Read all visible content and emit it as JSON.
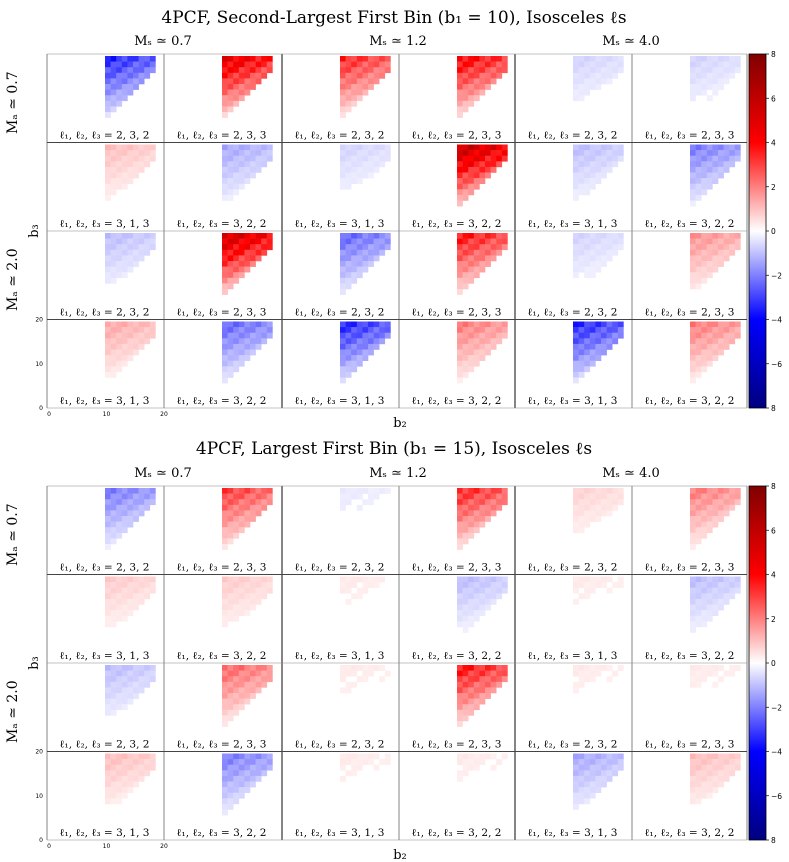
{
  "figures": [
    {
      "title": "4PCF, Second-Largest First Bin (b₁ = 10), Isosceles ℓs",
      "ms_labels": [
        "Mₛ ≃ 0.7",
        "Mₛ ≃ 1.2",
        "Mₛ ≃ 4.0"
      ],
      "ma_labels": [
        "Mₐ ≃ 0.7",
        "Mₐ ≃ 2.0"
      ],
      "ylabel": "b₃",
      "xlabel": "b₂",
      "x_ticks": [
        "0",
        "10",
        "20"
      ],
      "y_ticks": [
        "0",
        "10",
        "20"
      ],
      "colorbar_ticks": [
        "8",
        "6",
        "4",
        "2",
        "0",
        "−2",
        "−4",
        "−6",
        "8"
      ]
    },
    {
      "title": "4PCF, Largest First Bin (b₁ = 15), Isosceles ℓs",
      "ms_labels": [
        "Mₛ ≃ 0.7",
        "Mₛ ≃ 1.2",
        "Mₛ ≃ 4.0"
      ],
      "ma_labels": [
        "Mₐ ≃ 0.7",
        "Mₐ ≃ 2.0"
      ],
      "ylabel": "b₃",
      "xlabel": "b₂",
      "x_ticks": [
        "0",
        "10",
        "20"
      ],
      "y_ticks": [
        "0",
        "10",
        "20"
      ],
      "colorbar_ticks": [
        "8",
        "6",
        "4",
        "2",
        "0",
        "−2",
        "−4",
        "−6",
        "8"
      ]
    }
  ],
  "panel_labels": [
    [
      "ℓ₁, ℓ₂, ℓ₃ = 2, 3, 2",
      "ℓ₁, ℓ₂, ℓ₃ = 2, 3, 3",
      "ℓ₁, ℓ₂, ℓ₃ = 2, 3, 2",
      "ℓ₁, ℓ₂, ℓ₃ = 2, 3, 3",
      "ℓ₁, ℓ₂, ℓ₃ = 2, 3, 2",
      "ℓ₁, ℓ₂, ℓ₃ = 2, 3, 3"
    ],
    [
      "ℓ₁, ℓ₂, ℓ₃ = 3, 1, 3",
      "ℓ₁, ℓ₂, ℓ₃ = 3, 2, 2",
      "ℓ₁, ℓ₂, ℓ₃ = 3, 1, 3",
      "ℓ₁, ℓ₂, ℓ₃ = 3, 2, 2",
      "ℓ₁, ℓ₂, ℓ₃ = 3, 1, 3",
      "ℓ₁, ℓ₂, ℓ₃ = 3, 2, 2"
    ],
    [
      "ℓ₁, ℓ₂, ℓ₃ = 2, 3, 2",
      "ℓ₁, ℓ₂, ℓ₃ = 2, 3, 3",
      "ℓ₁, ℓ₂, ℓ₃ = 2, 3, 2",
      "ℓ₁, ℓ₂, ℓ₃ = 2, 3, 3",
      "ℓ₁, ℓ₂, ℓ₃ = 2, 3, 2",
      "ℓ₁, ℓ₂, ℓ₃ = 2, 3, 3"
    ],
    [
      "ℓ₁, ℓ₂, ℓ₃ = 3, 1, 3",
      "ℓ₁, ℓ₂, ℓ₃ = 3, 2, 2",
      "ℓ₁, ℓ₂, ℓ₃ = 3, 1, 3",
      "ℓ₁, ℓ₂, ℓ₃ = 3, 2, 2",
      "ℓ₁, ℓ₂, ℓ₃ = 3, 1, 3",
      "ℓ₁, ℓ₂, ℓ₃ = 3, 2, 2"
    ]
  ],
  "chart_data": [
    {
      "type": "heatmap",
      "title": "4PCF, Second-Largest First Bin (b₁ = 10), Isosceles ℓs",
      "xlabel": "b₂",
      "ylabel": "b₃",
      "xlim": [
        0,
        20
      ],
      "ylim": [
        0,
        20
      ],
      "colorbar_range": [
        -8,
        8
      ],
      "colormap": "seismic",
      "panel_intensity": [
        [
          -0.5,
          0.7,
          0.5,
          0.6,
          -0.1,
          -0.1
        ],
        [
          0.15,
          -0.2,
          -0.1,
          0.85,
          -0.15,
          -0.3
        ],
        [
          -0.15,
          0.8,
          -0.35,
          0.55,
          -0.1,
          0.25
        ],
        [
          0.2,
          -0.35,
          -0.5,
          0.3,
          -0.5,
          0.3
        ]
      ]
    },
    {
      "type": "heatmap",
      "title": "4PCF, Largest First Bin (b₁ = 15), Isosceles ℓs",
      "xlabel": "b₂",
      "ylabel": "b₃",
      "xlim": [
        0,
        20
      ],
      "ylim": [
        0,
        20
      ],
      "colorbar_range": [
        -8,
        8
      ],
      "colormap": "seismic",
      "panel_intensity": [
        [
          -0.3,
          0.45,
          -0.05,
          0.5,
          0.1,
          0.3
        ],
        [
          0.12,
          0.12,
          0.05,
          -0.15,
          0.05,
          -0.15
        ],
        [
          -0.15,
          0.35,
          0.05,
          0.55,
          0.05,
          0.05
        ],
        [
          0.15,
          -0.3,
          0.05,
          0.05,
          -0.2,
          0.15
        ]
      ]
    }
  ]
}
